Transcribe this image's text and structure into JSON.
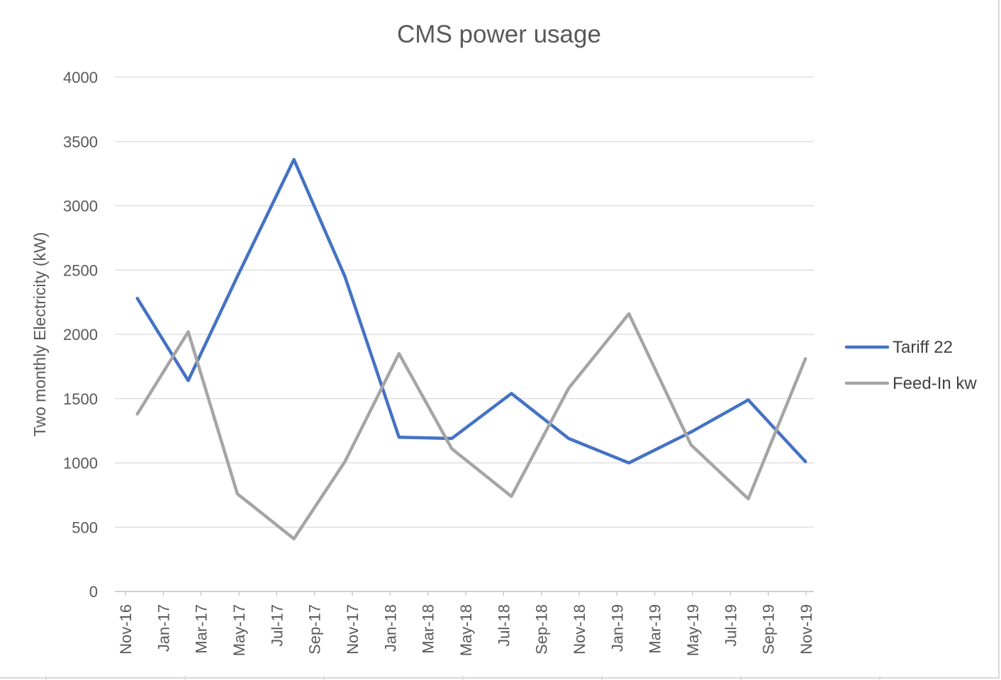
{
  "chart_data": {
    "type": "line",
    "title": "CMS power usage",
    "xlabel": "",
    "ylabel": "Two monthly Electricity (kW)",
    "categories": [
      "Nov-16",
      "Jan-17",
      "Mar-17",
      "May-17",
      "Jul-17",
      "Sep-17",
      "Nov-17",
      "Jan-18",
      "Mar-18",
      "May-18",
      "Jul-18",
      "Sep-18",
      "Nov-18",
      "Jan-19",
      "Mar-19",
      "May-19",
      "Jul-19",
      "Sep-19",
      "Nov-19"
    ],
    "x": [
      "2016-11-20",
      "2017-02-10",
      "2017-04-30",
      "2017-07-30",
      "2017-10-20",
      "2018-01-15",
      "2018-04-10",
      "2018-07-15",
      "2018-10-15",
      "2019-01-20",
      "2019-04-30",
      "2019-07-31",
      "2019-10-31"
    ],
    "series": [
      {
        "name": "Tariff 22",
        "color": "#4472c4",
        "values": [
          2280,
          1640,
          2450,
          3360,
          2450,
          1200,
          1190,
          1540,
          1190,
          1000,
          1240,
          1490,
          1010
        ]
      },
      {
        "name": "Feed-In kw",
        "color": "#a5a5a5",
        "values": [
          1380,
          2020,
          760,
          410,
          1010,
          1850,
          1110,
          740,
          1580,
          2160,
          1140,
          720,
          1810
        ]
      }
    ],
    "xrange": [
      "2016-11-01",
      "2019-11-01"
    ],
    "ylim": [
      0,
      4000
    ],
    "yticks": [
      0,
      500,
      1000,
      1500,
      2000,
      2500,
      3000,
      3500,
      4000
    ],
    "grid": true,
    "legend_position": "right"
  }
}
